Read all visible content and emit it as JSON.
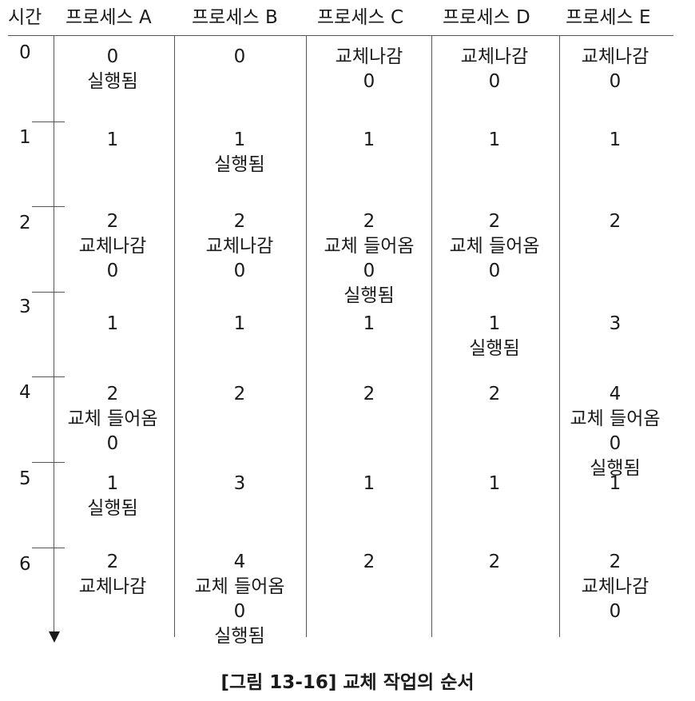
{
  "header": {
    "time": "시간",
    "processes": [
      "프로세스 A",
      "프로세스 B",
      "프로세스 C",
      "프로세스 D",
      "프로세스 E"
    ]
  },
  "times": [
    "0",
    "1",
    "2",
    "3",
    "4",
    "5",
    "6"
  ],
  "rows": [
    [
      [
        "0",
        "실행됨"
      ],
      [
        "0"
      ],
      [
        "교체나감",
        "0"
      ],
      [
        "교체나감",
        "0"
      ],
      [
        "교체나감",
        "0"
      ]
    ],
    [
      [
        "1"
      ],
      [
        "1",
        "실행됨"
      ],
      [
        "1"
      ],
      [
        "1"
      ],
      [
        "1"
      ]
    ],
    [
      [
        "2",
        "교체나감",
        "0"
      ],
      [
        "2",
        "교체나감",
        "0"
      ],
      [
        "2",
        "교체 들어옴",
        "0",
        "실행됨"
      ],
      [
        "2",
        "교체 들어옴",
        "0"
      ],
      [
        "2"
      ]
    ],
    [
      [
        "1"
      ],
      [
        "1"
      ],
      [
        "1"
      ],
      [
        "1",
        "실행됨"
      ],
      [
        "3"
      ]
    ],
    [
      [
        "2",
        "교체 들어옴",
        "0"
      ],
      [
        "2"
      ],
      [
        "2"
      ],
      [
        "2"
      ],
      [
        "4",
        "교체 들어옴",
        "0",
        "실행됨"
      ]
    ],
    [
      [
        "1",
        "실행됨"
      ],
      [
        "3"
      ],
      [
        "1"
      ],
      [
        "1"
      ],
      [
        "1"
      ]
    ],
    [
      [
        "2",
        "교체나감"
      ],
      [
        "4",
        "교체 들어옴",
        "0",
        "실행됨"
      ],
      [
        "2"
      ],
      [
        "2"
      ],
      [
        "2",
        "교체나감",
        "0"
      ]
    ]
  ],
  "caption": "[그림 13-16] 교체 작업의 순서"
}
